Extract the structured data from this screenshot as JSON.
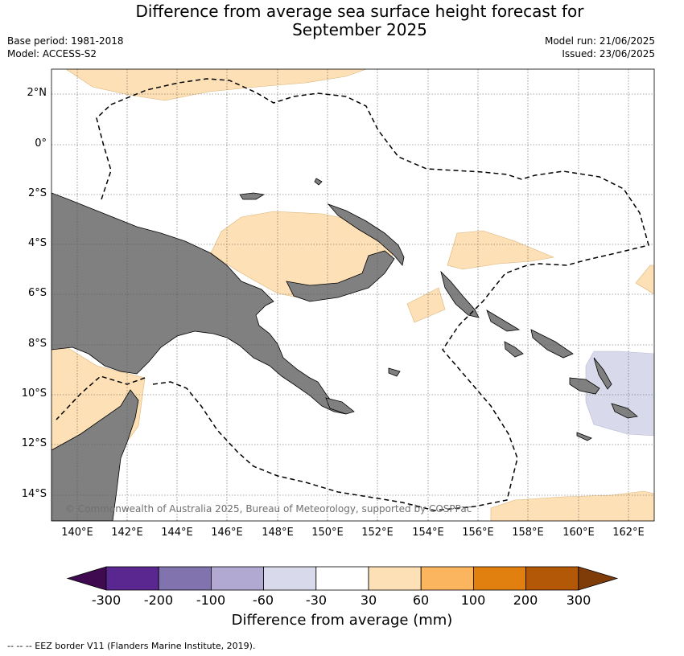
{
  "title": {
    "line1": "Difference from average sea surface height forecast for",
    "line2": "September 2025"
  },
  "meta": {
    "base_period": "Base period: 1981-2018",
    "model": "Model: ACCESS-S2",
    "model_run": "Model run: 21/06/2025",
    "issued": "Issued: 23/06/2025"
  },
  "map": {
    "lat_labels": [
      "2°N",
      "0°",
      "2°S",
      "4°S",
      "6°S",
      "8°S",
      "10°S",
      "12°S",
      "14°S"
    ],
    "lon_labels": [
      "140°E",
      "142°E",
      "144°E",
      "146°E",
      "148°E",
      "150°E",
      "152°E",
      "154°E",
      "156°E",
      "158°E",
      "160°E",
      "162°E"
    ],
    "copyright": "© Commonwealth of Australia 2025, Bureau of Meteorology, supported by COSPPac",
    "colors": {
      "land": "#808080",
      "anomaly_30_60": "#fde0b5",
      "anomaly_minus60_minus30": "#d8d9ea",
      "eez_border": "#000000",
      "grid": "#555555"
    }
  },
  "colorbar": {
    "title": "Difference from average (mm)",
    "ticks": [
      "-300",
      "-200",
      "-100",
      "-60",
      "-30",
      "30",
      "60",
      "100",
      "200",
      "300"
    ],
    "colors": [
      "#3f0a50",
      "#5a2790",
      "#8073ae",
      "#b1a9d2",
      "#d8d9ea",
      "#ffffff",
      "#fde0b5",
      "#fbb55e",
      "#e1800f",
      "#b35806",
      "#7f3b08"
    ]
  },
  "footer": {
    "legend": "-- -- -- EEZ border V11 (Flanders Marine Institute, 2019)."
  }
}
